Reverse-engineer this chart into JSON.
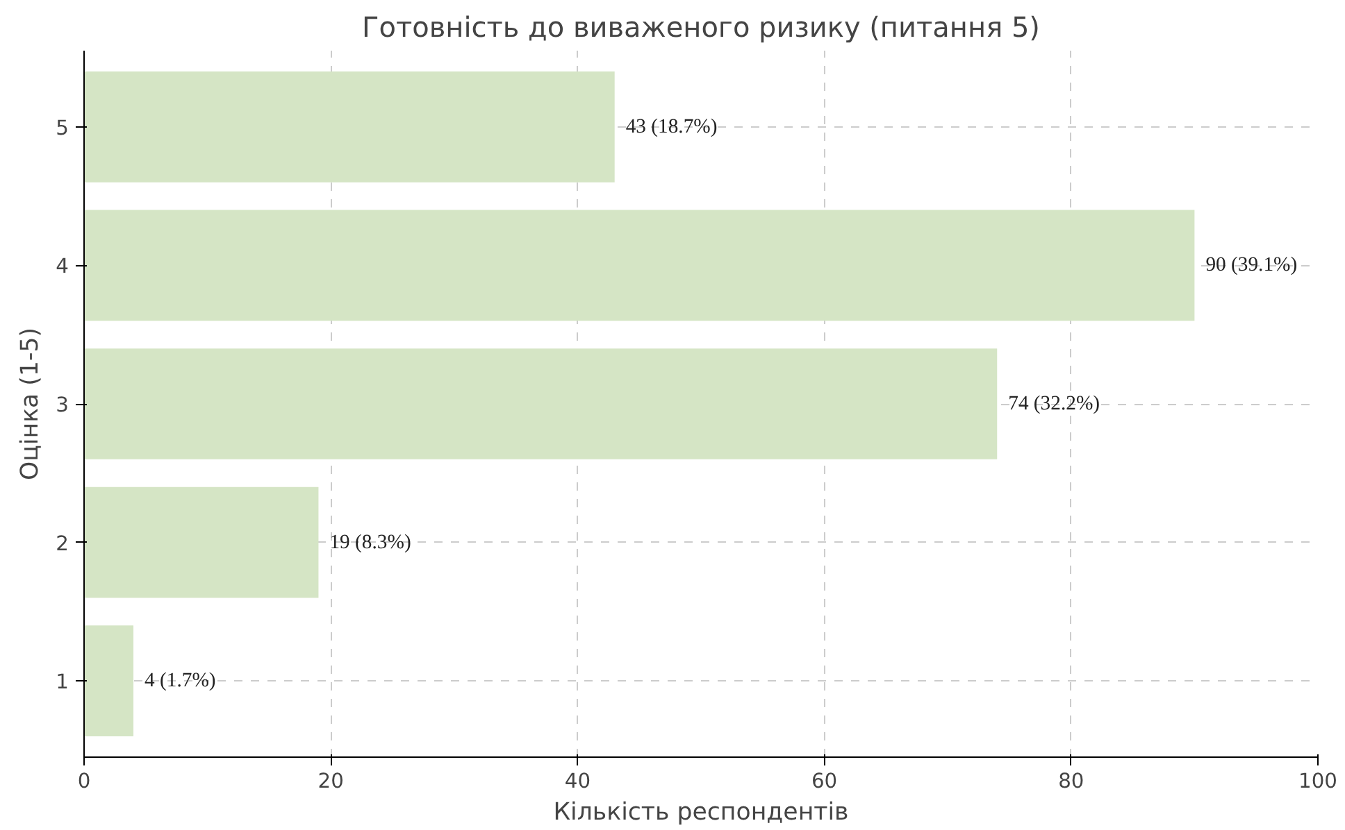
{
  "chart_data": {
    "type": "bar",
    "orientation": "horizontal",
    "title": "Готовність до виваженого ризику (питання 5)",
    "xlabel": "Кількість респондентів",
    "ylabel": "Оцінка (1-5)",
    "categories": [
      "5",
      "4",
      "3",
      "2",
      "1"
    ],
    "values": [
      43,
      90,
      74,
      19,
      4
    ],
    "value_labels": [
      "43 (18.7%)",
      "90 (39.1%)",
      "74 (32.2%)",
      "19 (8.3%)",
      "4 (1.7%)"
    ],
    "color": "#d5e5c5",
    "xlim": [
      0,
      100
    ],
    "xticks": [
      0,
      20,
      40,
      60,
      80,
      100
    ],
    "grid": true
  }
}
